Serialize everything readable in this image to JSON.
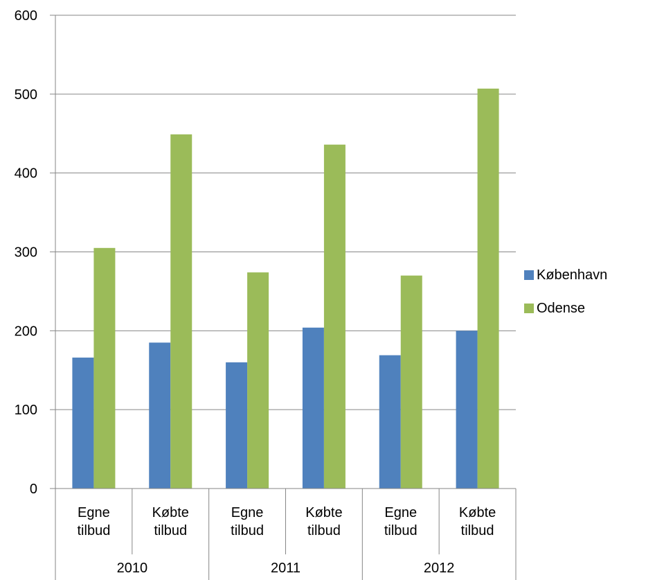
{
  "chart_data": {
    "type": "bar",
    "title": "",
    "xlabel": "",
    "ylabel": "",
    "ylim": [
      0,
      600
    ],
    "yticks": [
      0,
      100,
      200,
      300,
      400,
      500,
      600
    ],
    "grid": true,
    "legend_position": "right",
    "groups": [
      {
        "label": "2010",
        "categories": [
          "Egne tilbud",
          "Købte tilbud"
        ]
      },
      {
        "label": "2011",
        "categories": [
          "Egne tilbud",
          "Købte tilbud"
        ]
      },
      {
        "label": "2012",
        "categories": [
          "Egne tilbud",
          "Købte tilbud"
        ]
      }
    ],
    "categories": [
      "Egne tilbud",
      "Købte tilbud",
      "Egne tilbud",
      "Købte tilbud",
      "Egne tilbud",
      "Købte tilbud"
    ],
    "series": [
      {
        "name": "København",
        "color": "#4F81BD",
        "values": [
          166,
          185,
          160,
          204,
          169,
          200
        ]
      },
      {
        "name": "Odense",
        "color": "#9BBB59",
        "values": [
          305,
          449,
          274,
          436,
          270,
          507
        ]
      }
    ]
  }
}
